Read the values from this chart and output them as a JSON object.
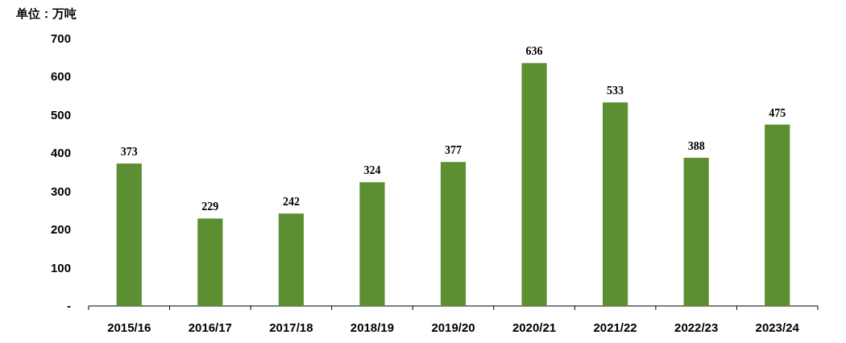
{
  "chart_data": {
    "type": "bar",
    "ylabel": "单位：万吨",
    "categories": [
      "2015/16",
      "2016/17",
      "2017/18",
      "2018/19",
      "2019/20",
      "2020/21",
      "2021/22",
      "2022/23",
      "2023/24"
    ],
    "values": [
      373,
      229,
      242,
      324,
      377,
      636,
      533,
      388,
      475
    ],
    "color": "#5b8f32",
    "ylim": [
      0,
      700
    ],
    "yticks": [
      {
        "value": 0,
        "label": "-"
      },
      100,
      200,
      300,
      400,
      500,
      600,
      700
    ],
    "data_labels": true,
    "grid": false
  }
}
